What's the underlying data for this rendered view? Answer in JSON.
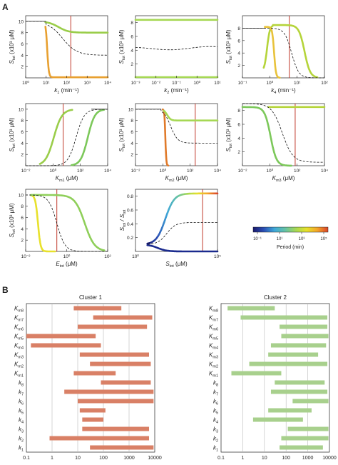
{
  "panels": {
    "a_label": "A",
    "b_label": "B"
  },
  "panelA": {
    "plots": [
      {
        "id": "k1",
        "y_label": "S",
        "y_sub": "tot",
        "y_unit": "(x10³ μM)",
        "x_label": "k",
        "x_sub": "1",
        "x_unit": "(min⁻¹)",
        "xticks": [
          "10⁰",
          "10¹",
          "10²",
          "10³",
          "10⁴"
        ],
        "yticks": [
          "2",
          "4",
          "6",
          "8",
          "10"
        ],
        "xlim": [
          0,
          4
        ],
        "ylim": [
          0,
          11
        ]
      },
      {
        "id": "k2",
        "y_label": "S",
        "y_sub": "tot",
        "y_unit": "(x10³ μM)",
        "x_label": "k",
        "x_sub": "2",
        "x_unit": "(min⁻¹)",
        "xticks": [
          "10⁻³",
          "10⁻²",
          "10⁻¹",
          "10⁰",
          "10¹"
        ],
        "yticks": [
          "2",
          "4",
          "6",
          "8"
        ],
        "xlim": [
          -3,
          1.5
        ],
        "ylim": [
          0,
          9
        ]
      },
      {
        "id": "k4",
        "y_label": "S",
        "y_sub": "tot",
        "y_unit": "(x10³ μM)",
        "x_label": "k",
        "x_sub": "4",
        "x_unit": "(min⁻¹)",
        "xticks": [
          "10⁻¹",
          "10⁰",
          "10¹",
          "10²"
        ],
        "yticks": [
          "2",
          "4",
          "6",
          "8"
        ],
        "xlim": [
          -1,
          2.5
        ],
        "ylim": [
          0,
          10
        ]
      },
      {
        "id": "km1",
        "y_label": "S",
        "y_sub": "tot",
        "y_unit": "(x10³ μM)",
        "x_label": "K",
        "x_sub": "m1",
        "x_unit": "(μM)",
        "xticks": [
          "10⁻²",
          "10⁰",
          "10²",
          "10⁴"
        ],
        "yticks": [
          "2",
          "4",
          "6",
          "8",
          "10"
        ],
        "xlim": [
          -3,
          4
        ],
        "ylim": [
          0,
          11
        ]
      },
      {
        "id": "km2",
        "y_label": "S",
        "y_sub": "tot",
        "y_unit": "(x10³ μM)",
        "x_label": "K",
        "x_sub": "m2",
        "x_unit": "(μM)",
        "xticks": [
          "10⁻²",
          "10⁰",
          "10²",
          "10⁴"
        ],
        "yticks": [
          "2",
          "4",
          "6",
          "8",
          "10"
        ],
        "xlim": [
          -3,
          4
        ],
        "ylim": [
          0,
          11
        ]
      },
      {
        "id": "km3",
        "y_label": "S",
        "y_sub": "tot",
        "y_unit": "(x10³ μM)",
        "x_label": "K",
        "x_sub": "m3",
        "x_unit": "(μM)",
        "xticks": [
          "10⁻²",
          "10⁰",
          "10²",
          "10⁴"
        ],
        "yticks": [
          "2",
          "4",
          "6",
          "8"
        ],
        "xlim": [
          -3,
          4
        ],
        "ylim": [
          0,
          9
        ]
      },
      {
        "id": "etot",
        "y_label": "S",
        "y_sub": "tot",
        "y_unit": "(x10³ μM)",
        "x_label": "E",
        "x_sub": "tot",
        "x_unit": "(μM)",
        "xticks": [
          "10⁻²",
          "10⁰",
          "10²"
        ],
        "yticks": [
          "2",
          "4",
          "6",
          "8",
          "10"
        ],
        "xlim": [
          -2,
          3
        ],
        "ylim": [
          0,
          11
        ]
      },
      {
        "id": "ratio",
        "y_label": "S",
        "y_sub": "tot",
        "y_label2": "/ S",
        "y_sub2": "tot",
        "y_unit": "",
        "x_label": "S",
        "x_sub": "tot",
        "x_unit": "(μM)",
        "xticks": [
          "10⁰",
          "10⁵"
        ],
        "yticks": [
          "0.2",
          "0.4",
          "0.6",
          "0.8"
        ],
        "xlim": [
          0,
          5.5
        ],
        "ylim": [
          0,
          0.9
        ]
      }
    ],
    "colorbar": {
      "ticks": [
        "10⁻¹",
        "10¹",
        "10³",
        "10⁵"
      ],
      "label": "Period (min)",
      "colors": [
        "#1a1a6e",
        "#2b4fb5",
        "#3fa8d8",
        "#66c2a5",
        "#a6d854",
        "#e6e12b",
        "#f4a52a",
        "#d9442a"
      ]
    },
    "colors": {
      "red_line": "#c0392b",
      "black_line": "#111111"
    }
  },
  "panelB": {
    "clusters": [
      {
        "title": "Cluster 1",
        "bar_color": "#d98066",
        "xticks": [
          "0.1",
          "1",
          "10",
          "100",
          "1000",
          "10000"
        ],
        "rows": [
          {
            "label": "K",
            "sub": "m8",
            "lo": 7,
            "hi": 500
          },
          {
            "label": "K",
            "sub": "m7",
            "lo": 40,
            "hi": 8000
          },
          {
            "label": "K",
            "sub": "m6",
            "lo": 10,
            "hi": 5000
          },
          {
            "label": "K",
            "sub": "m5",
            "lo": 0.1,
            "hi": 50
          },
          {
            "label": "K",
            "sub": "m4",
            "lo": 0.15,
            "hi": 80
          },
          {
            "label": "K",
            "sub": "m3",
            "lo": 12,
            "hi": 6000
          },
          {
            "label": "K",
            "sub": "m2",
            "lo": 30,
            "hi": 7000
          },
          {
            "label": "K",
            "sub": "m1",
            "lo": 7,
            "hi": 300
          },
          {
            "label": "k",
            "sub": "8",
            "lo": 80,
            "hi": 7000
          },
          {
            "label": "k",
            "sub": "7",
            "lo": 3,
            "hi": 9000
          },
          {
            "label": "k",
            "sub": "6",
            "lo": 10,
            "hi": 9000
          },
          {
            "label": "k",
            "sub": "5",
            "lo": 12,
            "hi": 120
          },
          {
            "label": "k",
            "sub": "4",
            "lo": 15,
            "hi": 100
          },
          {
            "label": "k",
            "sub": "3",
            "lo": 15,
            "hi": 6000
          },
          {
            "label": "k",
            "sub": "2",
            "lo": 0.8,
            "hi": 6000
          },
          {
            "label": "k",
            "sub": "1",
            "lo": 30,
            "hi": 9000
          }
        ]
      },
      {
        "title": "Cluster 2",
        "bar_color": "#a8d08d",
        "xticks": [
          "0.1",
          "1",
          "10",
          "100",
          "1000",
          "10000"
        ],
        "rows": [
          {
            "label": "K",
            "sub": "m8",
            "lo": 0.2,
            "hi": 30
          },
          {
            "label": "K",
            "sub": "m7",
            "lo": 0.8,
            "hi": 8000
          },
          {
            "label": "K",
            "sub": "m6",
            "lo": 50,
            "hi": 8000
          },
          {
            "label": "K",
            "sub": "m5",
            "lo": 60,
            "hi": 9000
          },
          {
            "label": "K",
            "sub": "m4",
            "lo": 20,
            "hi": 7000
          },
          {
            "label": "K",
            "sub": "m3",
            "lo": 15,
            "hi": 3000
          },
          {
            "label": "K",
            "sub": "m2",
            "lo": 2,
            "hi": 8000
          },
          {
            "label": "K",
            "sub": "m1",
            "lo": 0.3,
            "hi": 60
          },
          {
            "label": "k",
            "sub": "8",
            "lo": 30,
            "hi": 6000
          },
          {
            "label": "k",
            "sub": "7",
            "lo": 20,
            "hi": 8000
          },
          {
            "label": "k",
            "sub": "6",
            "lo": 200,
            "hi": 9000
          },
          {
            "label": "k",
            "sub": "5",
            "lo": 15,
            "hi": 1500
          },
          {
            "label": "k",
            "sub": "4",
            "lo": 3,
            "hi": 600
          },
          {
            "label": "k",
            "sub": "3",
            "lo": 120,
            "hi": 9000
          },
          {
            "label": "k",
            "sub": "2",
            "lo": 60,
            "hi": 9000
          },
          {
            "label": "k",
            "sub": "1",
            "lo": 50,
            "hi": 5000
          }
        ]
      }
    ]
  }
}
